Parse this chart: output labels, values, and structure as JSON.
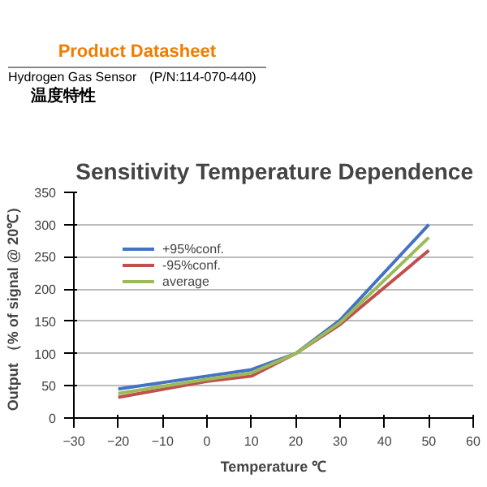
{
  "chart_data": {
    "type": "line",
    "title": "Sensitivity Temperature Dependence",
    "xlabel": "Temperature ℃",
    "ylabel": "Output （% of signal @ 20℃）",
    "annotations": [
      "Product Datasheet",
      "Hydrogen Gas Sensor",
      "(P/N:114-070-440)",
      "温度特性"
    ],
    "x": [
      -20,
      0,
      10,
      20,
      30,
      50
    ],
    "series": [
      {
        "name": "+95%conf.",
        "color": "#4472c4",
        "values": [
          45,
          65,
          75,
          100,
          152,
          300
        ]
      },
      {
        "name": "-95%conf.",
        "color": "#c0504d",
        "values": [
          32,
          57,
          65,
          100,
          145,
          260
        ]
      },
      {
        "name": "average",
        "color": "#9bbb59",
        "values": [
          38,
          60,
          70,
          100,
          148,
          280
        ]
      }
    ],
    "xlim": [
      -30,
      60
    ],
    "xticks": [
      -30,
      -20,
      -10,
      0,
      10,
      20,
      30,
      40,
      50,
      60
    ],
    "ylim": [
      0,
      350
    ],
    "yticks": [
      0,
      50,
      100,
      150,
      200,
      250,
      300,
      350
    ],
    "grid": "y",
    "legend": "top left",
    "line_style": "solid",
    "marker": "none"
  }
}
